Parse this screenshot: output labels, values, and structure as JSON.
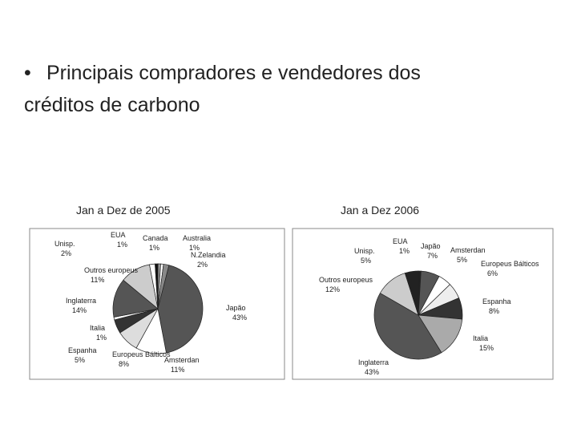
{
  "slide": {
    "bullet": "•",
    "text_line1": "Principais compradores e vendedores dos",
    "text_line2": "créditos de carbono"
  },
  "chart_data": [
    {
      "type": "pie",
      "title": "Jan a Dez de 2005",
      "categories": [
        "Canada",
        "Australia",
        "N.Zelandia",
        "Japão",
        "Amsterdan",
        "Europeus Bálticos",
        "Espanha",
        "Italia",
        "Inglaterra",
        "Outros europeus",
        "Unisp.",
        "EUA"
      ],
      "values": [
        1,
        1,
        2,
        43,
        11,
        8,
        5,
        1,
        14,
        11,
        2,
        1
      ],
      "value_labels": [
        "1%",
        "1%",
        "2%",
        "43%",
        "11%",
        "8%",
        "5%",
        "1%",
        "14%",
        "11%",
        "2%",
        "1%"
      ],
      "colors": [
        "#999999",
        "#ffffff",
        "#888888",
        "#555555",
        "#ffffff",
        "#dddddd",
        "#333333",
        "#ffffff",
        "#555555",
        "#cccccc",
        "#ffffff",
        "#111111"
      ]
    },
    {
      "type": "pie",
      "title": "Jan a Dez 2006",
      "categories": [
        "EUA",
        "Japão",
        "Amsterdan",
        "Europeus Bálticos",
        "Espanha",
        "Italia",
        "Inglaterra",
        "Outros europeus",
        "Unisp."
      ],
      "values": [
        1,
        7,
        5,
        6,
        8,
        15,
        43,
        12,
        5
      ],
      "value_labels": [
        "1%",
        "7%",
        "5%",
        "6%",
        "8%",
        "15%",
        "43%",
        "12%",
        "5%"
      ],
      "colors": [
        "#222222",
        "#555555",
        "#ffffff",
        "#eeeeee",
        "#333333",
        "#aaaaaa",
        "#555555",
        "#cccccc",
        "#222222"
      ]
    }
  ]
}
